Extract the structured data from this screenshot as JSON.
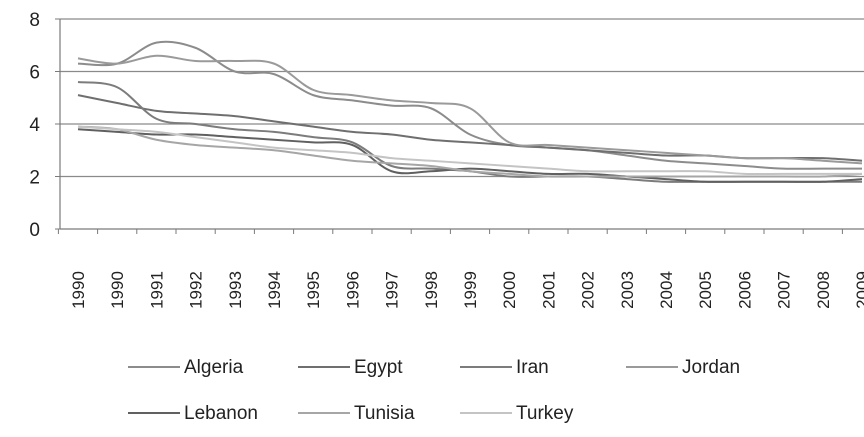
{
  "chart_data": {
    "type": "line",
    "title": "",
    "xlabel": "",
    "ylabel": "",
    "ylim": [
      0,
      8
    ],
    "yticks": [
      "0",
      "2",
      "4",
      "6",
      "8"
    ],
    "categories": [
      "1990",
      "1990",
      "1991",
      "1992",
      "1993",
      "1994",
      "1995",
      "1996",
      "1997",
      "1998",
      "1999",
      "2000",
      "2001",
      "2002",
      "2003",
      "2004",
      "2005",
      "2006",
      "2007",
      "2008",
      "2009"
    ],
    "grid": true,
    "legend": "bottom",
    "series": [
      {
        "name": "Algeria",
        "color": "#8c8c8c",
        "values": [
          6.3,
          6.3,
          7.1,
          6.9,
          6.0,
          5.9,
          5.1,
          4.9,
          4.7,
          4.6,
          3.6,
          3.2,
          3.1,
          3.0,
          2.8,
          2.6,
          2.5,
          2.4,
          2.3,
          2.3,
          2.3
        ]
      },
      {
        "name": "Egypt",
        "color": "#6f6f6f",
        "values": [
          5.1,
          4.8,
          4.5,
          4.4,
          4.3,
          4.1,
          3.9,
          3.7,
          3.6,
          3.4,
          3.3,
          3.2,
          3.1,
          3.0,
          2.9,
          2.8,
          2.8,
          2.7,
          2.7,
          2.7,
          2.6
        ]
      },
      {
        "name": "Iran",
        "color": "#7c7c7c",
        "values": [
          5.6,
          5.4,
          4.2,
          4.0,
          3.8,
          3.7,
          3.5,
          3.3,
          2.4,
          2.3,
          2.2,
          2.0,
          2.0,
          2.0,
          1.9,
          1.8,
          1.8,
          1.8,
          1.8,
          1.8,
          1.8
        ]
      },
      {
        "name": "Jordan",
        "color": "#9a9a9a",
        "values": [
          6.5,
          6.3,
          6.6,
          6.4,
          6.4,
          6.3,
          5.3,
          5.1,
          4.9,
          4.8,
          4.6,
          3.3,
          3.2,
          3.1,
          3.0,
          2.9,
          2.8,
          2.7,
          2.7,
          2.6,
          2.5
        ]
      },
      {
        "name": "Lebanon",
        "color": "#606060",
        "values": [
          3.8,
          3.7,
          3.6,
          3.6,
          3.5,
          3.4,
          3.3,
          3.2,
          2.2,
          2.2,
          2.3,
          2.2,
          2.1,
          2.1,
          2.0,
          1.9,
          1.8,
          1.8,
          1.8,
          1.8,
          1.9
        ]
      },
      {
        "name": "Tunisia",
        "color": "#a6a6a6",
        "values": [
          3.9,
          3.8,
          3.4,
          3.2,
          3.1,
          3.0,
          2.8,
          2.6,
          2.5,
          2.4,
          2.2,
          2.1,
          2.0,
          2.0,
          2.0,
          2.0,
          2.0,
          2.0,
          2.0,
          2.0,
          2.1
        ]
      },
      {
        "name": "Turkey",
        "color": "#c4c4c4",
        "values": [
          3.9,
          3.8,
          3.7,
          3.5,
          3.3,
          3.1,
          3.0,
          2.9,
          2.7,
          2.6,
          2.5,
          2.4,
          2.3,
          2.2,
          2.2,
          2.2,
          2.2,
          2.1,
          2.1,
          2.1,
          2.1
        ]
      }
    ]
  }
}
